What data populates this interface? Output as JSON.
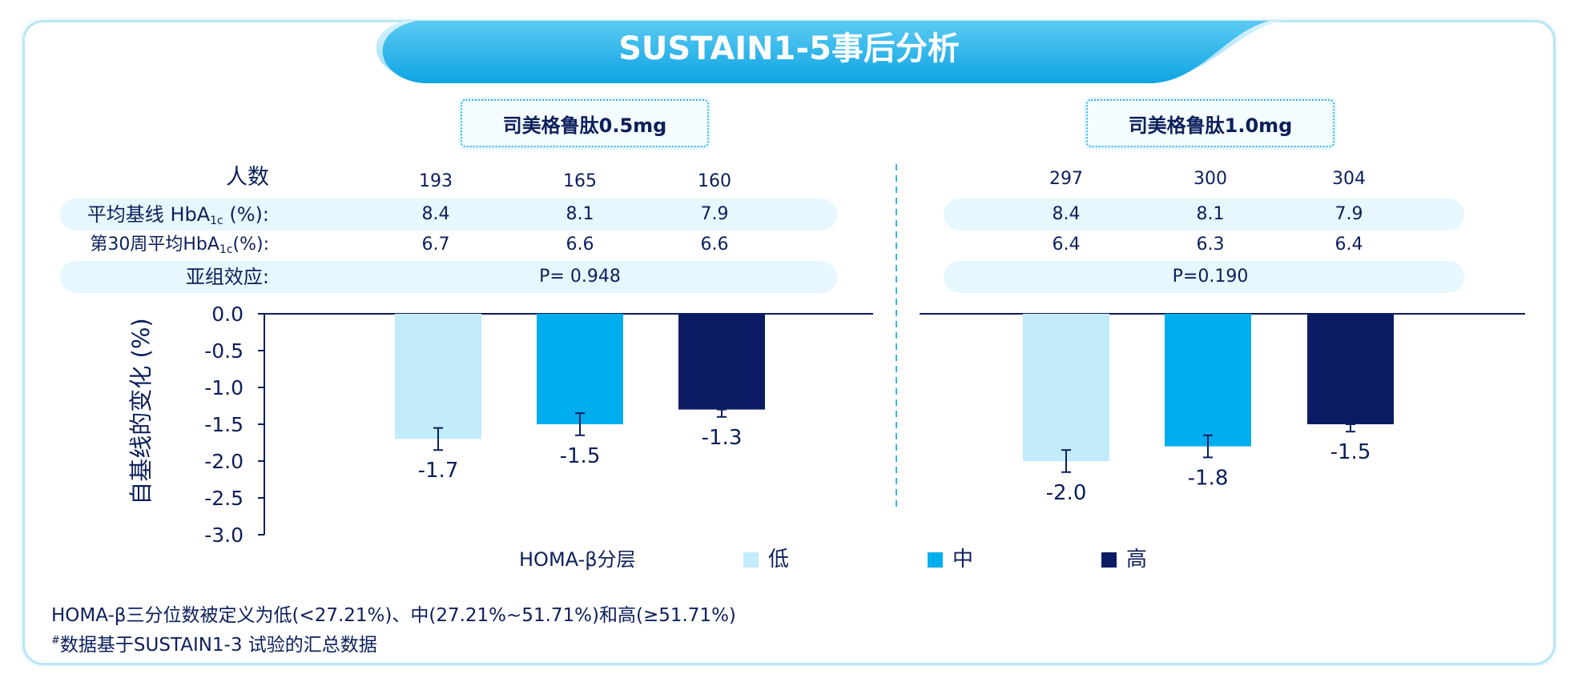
{
  "title": "SUSTAIN1-5事后分析",
  "panels": [
    {
      "dose_label": "司美格鲁肽0.5mg",
      "n": [
        "193",
        "165",
        "160"
      ],
      "baseline_hba1c": [
        "8.4",
        "8.1",
        "7.9"
      ],
      "week30_hba1c": [
        "6.7",
        "6.6",
        "6.6"
      ],
      "p_value": "P= 0.948"
    },
    {
      "dose_label": "司美格鲁肽1.0mg",
      "n": [
        "297",
        "300",
        "304"
      ],
      "baseline_hba1c": [
        "8.4",
        "8.1",
        "7.9"
      ],
      "week30_hba1c": [
        "6.4",
        "6.3",
        "6.4"
      ],
      "p_value": "P=0.190"
    }
  ],
  "row_labels": {
    "n": "人数",
    "baseline_pre": "平均基线 HbA",
    "baseline_sub": "1c",
    "baseline_post": " (%):",
    "week30_pre": "第30周平均HbA",
    "week30_sub": "1c",
    "week30_post": "(%):",
    "subgroup": "亚组效应:"
  },
  "chart_data": {
    "type": "bar",
    "ylabel": "自基线的变化 (%)",
    "ylim": [
      -3.0,
      0.0
    ],
    "yticks": [
      "0.0",
      "-0.5",
      "-1.0",
      "-1.5",
      "-2.0",
      "-2.5",
      "-3.0"
    ],
    "categories": [
      "低",
      "中",
      "高"
    ],
    "panels": [
      {
        "panel": "司美格鲁肽0.5mg",
        "values": [
          -1.7,
          -1.5,
          -1.3
        ],
        "labels": [
          "-1.7",
          "-1.5",
          "-1.3"
        ],
        "error_low": [
          -1.85,
          -1.65,
          -1.4
        ],
        "error_high": [
          -1.55,
          -1.35,
          -1.3
        ]
      },
      {
        "panel": "司美格鲁肽1.0mg",
        "values": [
          -2.0,
          -1.8,
          -1.5
        ],
        "labels": [
          "-2.0",
          "-1.8",
          "-1.5"
        ],
        "error_low": [
          -2.15,
          -1.95,
          -1.6
        ],
        "error_high": [
          -1.85,
          -1.65,
          -1.5
        ]
      }
    ],
    "legend_title": "HOMA-β分层",
    "legend": [
      "低",
      "中",
      "高"
    ],
    "colors": [
      "#c2ebfb",
      "#00aeef",
      "#0b1c64"
    ]
  },
  "footnotes": {
    "line1": "HOMA-β三分位数被定义为低(<27.21%)、中(27.21%~51.71%)和高(≥51.71%)",
    "line2_mark": "#",
    "line2": "数据基于SUSTAIN1-3 试验的汇总数据"
  }
}
